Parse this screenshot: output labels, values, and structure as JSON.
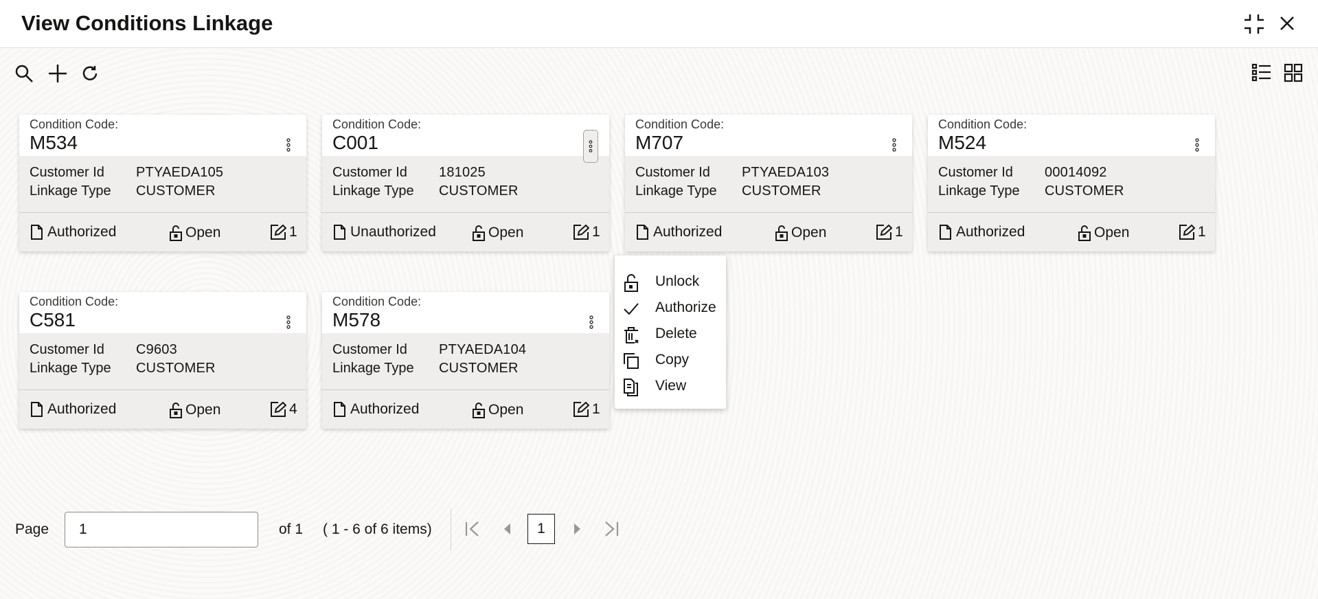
{
  "header": {
    "title": "View Conditions Linkage"
  },
  "toolbar": {
    "icons": [
      "search-icon",
      "plus-icon",
      "refresh-icon"
    ],
    "view_icons": [
      "list-view-icon",
      "grid-view-icon"
    ]
  },
  "cards": [
    {
      "label": "Condition Code:",
      "code": "M534",
      "customer_id_label": "Customer Id",
      "customer_id": "PTYAEDA105",
      "linkage_type_label": "Linkage Type",
      "linkage_type": "CUSTOMER",
      "auth_status": "Authorized",
      "record_status": "Open",
      "mod_count": "1"
    },
    {
      "label": "Condition Code:",
      "code": "C001",
      "customer_id_label": "Customer Id",
      "customer_id": "181025",
      "linkage_type_label": "Linkage Type",
      "linkage_type": "CUSTOMER",
      "auth_status": "Unauthorized",
      "record_status": "Open",
      "mod_count": "1"
    },
    {
      "label": "Condition Code:",
      "code": "M707",
      "customer_id_label": "Customer Id",
      "customer_id": "PTYAEDA103",
      "linkage_type_label": "Linkage Type",
      "linkage_type": "CUSTOMER",
      "auth_status": "Authorized",
      "record_status": "Open",
      "mod_count": "1"
    },
    {
      "label": "Condition Code:",
      "code": "M524",
      "customer_id_label": "Customer Id",
      "customer_id": "00014092",
      "linkage_type_label": "Linkage Type",
      "linkage_type": "CUSTOMER",
      "auth_status": "Authorized",
      "record_status": "Open",
      "mod_count": "1"
    },
    {
      "label": "Condition Code:",
      "code": "C581",
      "customer_id_label": "Customer Id",
      "customer_id": "C9603",
      "linkage_type_label": "Linkage Type",
      "linkage_type": "CUSTOMER",
      "auth_status": "Authorized",
      "record_status": "Open",
      "mod_count": "4"
    },
    {
      "label": "Condition Code:",
      "code": "M578",
      "customer_id_label": "Customer Id",
      "customer_id": "PTYAEDA104",
      "linkage_type_label": "Linkage Type",
      "linkage_type": "CUSTOMER",
      "auth_status": "Authorized",
      "record_status": "Open",
      "mod_count": "1"
    }
  ],
  "context_menu": {
    "items": [
      {
        "label": "Unlock",
        "icon": "unlock-icon"
      },
      {
        "label": "Authorize",
        "icon": "check-icon"
      },
      {
        "label": "Delete",
        "icon": "delete-icon"
      },
      {
        "label": "Copy",
        "icon": "copy-icon"
      },
      {
        "label": "View",
        "icon": "view-icon"
      }
    ]
  },
  "pagination": {
    "page_label": "Page",
    "page_value": "1",
    "of_label": "of 1",
    "items_label": "( 1 - 6 of 6 items)",
    "current_page": "1"
  }
}
